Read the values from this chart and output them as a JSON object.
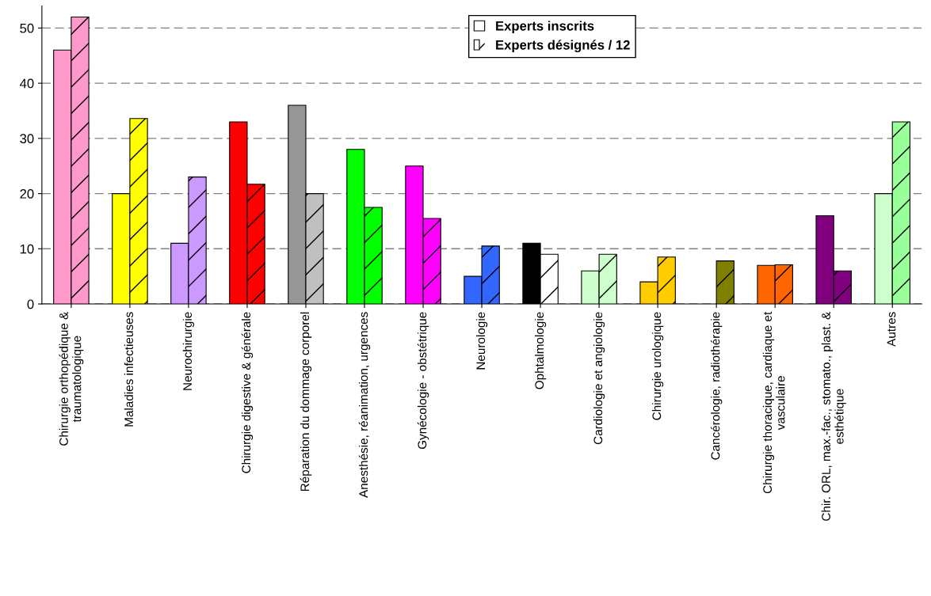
{
  "chart_data": {
    "type": "bar",
    "categories": [
      "Chirurgie orthopédique &\ntraumatologique",
      "Maladies infectieuses",
      "Neurochirurgie",
      "Chirurgie digestive & générale",
      "Réparation du dommage corporel",
      "Anesthésie, réanimation, urgences",
      "Gynécologie - obstétrique",
      "Neurologie",
      "Ophtalmologie",
      "Cardiologie et angiologie",
      "Chirurgie urologique",
      "Cancérologie, radiothérapie",
      "Chirurgie thoracique, cardiaque et\nvasculaire",
      "Chir. ORL, max.-fac., stomato., plast. &\nesthétique",
      "Autres"
    ],
    "series": [
      {
        "name": "Experts inscrits",
        "values": [
          46,
          20,
          11,
          33,
          36,
          28,
          25,
          5,
          11,
          6,
          4,
          null,
          7,
          16,
          20
        ],
        "colors": [
          "#ff99cc",
          "#ffff00",
          "#cc99ff",
          "#ff0000",
          "#969696",
          "#00ff00",
          "#ff00ff",
          "#3366ff",
          "#000000",
          "#ccffcc",
          "#ffcc00",
          "#808000",
          "#ff6600",
          "#800080",
          "#ccffcc"
        ]
      },
      {
        "name": "Experts désignés / 12",
        "values": [
          52,
          33.6,
          23,
          21.7,
          20,
          17.5,
          15.5,
          10.5,
          9,
          9,
          8.5,
          7.8,
          7.1,
          6,
          33
        ],
        "colors": [
          "#ff99cc",
          "#ffff00",
          "#cc99ff",
          "#ff0000",
          "#c0c0c0",
          "#00ff00",
          "#ff00ff",
          "#3366ff",
          "#ffffff",
          "#ccffcc",
          "#ffcc00",
          "#808000",
          "#ff6600",
          "#800080",
          "#99ff99"
        ]
      }
    ],
    "ylim": [
      0,
      54
    ],
    "yticks": [
      0,
      10,
      20,
      30,
      40,
      50
    ],
    "grid": "y",
    "legend": "top"
  }
}
